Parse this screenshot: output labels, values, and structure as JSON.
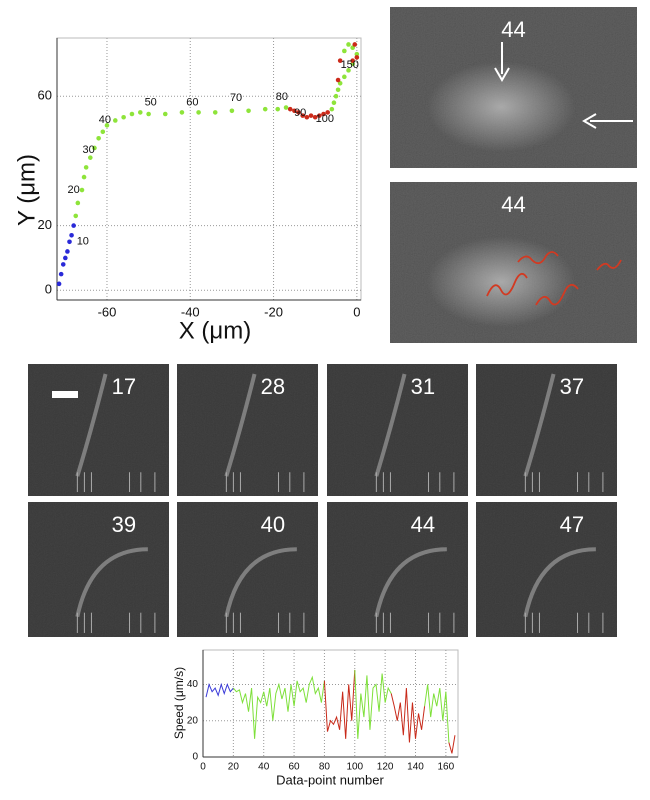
{
  "chart_data": [
    {
      "type": "scatter",
      "x_label": "X (μm)",
      "y_label": "Y (μm)",
      "xlim": [
        -72,
        1
      ],
      "ylim": [
        -3,
        78
      ],
      "xticks": [
        -60,
        -40,
        -20,
        0
      ],
      "yticks": [
        0,
        20,
        60
      ],
      "grid": true,
      "series": [
        {
          "color": "#2a2ad8",
          "x": [
            -71.5,
            -71,
            -70.5,
            -70,
            -69.5,
            -69,
            -68.5,
            -68
          ],
          "y": [
            2,
            5,
            8,
            10,
            12,
            15,
            17,
            20
          ]
        },
        {
          "color": "#8ee43a",
          "x": [
            -67.5,
            -67,
            -66,
            -65.5,
            -65,
            -64,
            -63,
            -62,
            -61,
            -60,
            -58,
            -56,
            -54,
            -52,
            -50,
            -46,
            -42,
            -38,
            -34,
            -30,
            -26,
            -22,
            -19,
            -17
          ],
          "y": [
            23,
            27,
            31,
            35,
            38,
            41,
            44,
            47,
            49,
            51,
            52.5,
            53.5,
            54.5,
            55,
            54.5,
            54.5,
            55,
            55,
            55,
            55.5,
            55.5,
            56,
            56,
            56.5
          ]
        },
        {
          "color": "#cc2a1a",
          "x": [
            -16,
            -15,
            -14,
            -13,
            -12,
            -11,
            -10,
            -9,
            -8,
            -7
          ],
          "y": [
            56,
            55.5,
            55,
            54,
            53.5,
            54,
            53.5,
            54,
            54.5,
            55
          ]
        },
        {
          "color": "#8ee43a",
          "x": [
            -6,
            -5.5,
            -5,
            -4.5,
            -4,
            -3,
            -2,
            -1,
            0,
            -1,
            -2,
            -3
          ],
          "y": [
            56,
            58,
            60,
            62,
            64,
            66,
            68,
            70,
            73,
            75,
            76,
            74
          ]
        },
        {
          "color": "#cc2a1a",
          "x": [
            -4,
            -4.5,
            -1,
            0,
            -0.5
          ],
          "y": [
            71,
            65,
            71,
            72,
            76
          ]
        }
      ],
      "annotations": [
        {
          "text": "10",
          "x": -65.8,
          "y": 15
        },
        {
          "text": "20",
          "x": -68,
          "y": 31
        },
        {
          "text": "30",
          "x": -64.4,
          "y": 43.3
        },
        {
          "text": "40",
          "x": -60.5,
          "y": 52.6
        },
        {
          "text": "50",
          "x": -49.5,
          "y": 58
        },
        {
          "text": "60",
          "x": -39.5,
          "y": 58
        },
        {
          "text": "70",
          "x": -29,
          "y": 59.4
        },
        {
          "text": "80",
          "x": -18,
          "y": 59.8
        },
        {
          "text": "90",
          "x": -13.6,
          "y": 54.8
        },
        {
          "text": "100",
          "x": -7.7,
          "y": 53
        },
        {
          "text": "150",
          "x": -1.7,
          "y": 69.7
        }
      ]
    },
    {
      "type": "line",
      "x_label": "Data-point number",
      "y_label": "Speed (μm/s)",
      "xlim": [
        0,
        168
      ],
      "ylim": [
        0,
        59
      ],
      "xticks": [
        0,
        20,
        40,
        60,
        80,
        100,
        120,
        140,
        160
      ],
      "yticks": [
        0,
        20,
        40
      ],
      "grid": true,
      "series": [
        {
          "color": "#3a3ad8",
          "x": [
            2,
            4,
            6,
            8,
            10,
            12,
            14,
            16,
            18,
            20
          ],
          "y": [
            33,
            40,
            36,
            38,
            34,
            40,
            35,
            40,
            36,
            38
          ]
        },
        {
          "color": "#7ee03a",
          "x": [
            20,
            22,
            24,
            26,
            28,
            30,
            32,
            34,
            36,
            38,
            40,
            42,
            44,
            46,
            48,
            50,
            52,
            54,
            56,
            58,
            60,
            62,
            64,
            66,
            68,
            70,
            72,
            74,
            76,
            78,
            80
          ],
          "y": [
            38,
            36,
            37,
            30,
            35,
            25,
            38,
            10,
            33,
            30,
            36,
            28,
            38,
            20,
            35,
            40,
            32,
            38,
            25,
            40,
            28,
            42,
            36,
            38,
            30,
            40,
            44,
            35,
            38,
            30,
            42
          ]
        },
        {
          "color": "#c82a1a",
          "x": [
            80,
            82,
            84,
            86,
            88,
            90,
            92,
            94,
            96,
            98,
            100
          ],
          "y": [
            42,
            14,
            20,
            18,
            22,
            15,
            36,
            10,
            40,
            20,
            48
          ]
        },
        {
          "color": "#7ee03a",
          "x": [
            100,
            102,
            104,
            106,
            108,
            110,
            112,
            114,
            116,
            118,
            120,
            122,
            124
          ],
          "y": [
            48,
            10,
            35,
            22,
            45,
            15,
            38,
            40,
            25,
            46,
            30,
            38,
            35
          ]
        },
        {
          "color": "#c82a1a",
          "x": [
            124,
            126,
            128,
            130,
            132,
            134,
            136,
            138,
            140,
            142,
            144,
            146
          ],
          "y": [
            35,
            28,
            20,
            30,
            12,
            38,
            8,
            30,
            10,
            24,
            15,
            28
          ]
        },
        {
          "color": "#7ee03a",
          "x": [
            146,
            148,
            150,
            152,
            154,
            156,
            158,
            160,
            162
          ],
          "y": [
            28,
            40,
            22,
            35,
            28,
            38,
            20,
            36,
            8
          ]
        },
        {
          "color": "#c82a1a",
          "x": [
            162,
            164,
            166
          ],
          "y": [
            8,
            2,
            12
          ]
        }
      ]
    }
  ],
  "frames": [
    "44",
    "44",
    "17",
    "28",
    "31",
    "37",
    "39",
    "40",
    "44",
    "47"
  ]
}
